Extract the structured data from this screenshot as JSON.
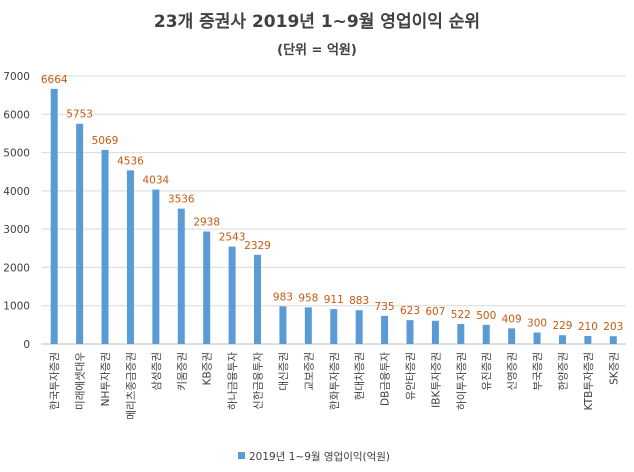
{
  "chart_data": {
    "type": "bar",
    "title": "23개 증권사 2019년 1~9월 영업이익 순위",
    "subtitle": "(단위 = 억원)",
    "categories": [
      "한국투자증권",
      "미래에셋대우",
      "NH투자증권",
      "메리츠종금증권",
      "삼성증권",
      "키움증권",
      "KB증권",
      "하나금융투자",
      "신한금융투자",
      "대신증권",
      "교보증권",
      "한화투자증권",
      "현대차증권",
      "DB금융투자",
      "유안타증권",
      "IBK투자증권",
      "하이투자증권",
      "유진증권",
      "신영증권",
      "부국증권",
      "한양증권",
      "KTB투자증권",
      "SK증권"
    ],
    "series": [
      {
        "name": "2019년 1~9월  영업이익(억원)",
        "values": [
          6664,
          5753,
          5069,
          4536,
          4034,
          3536,
          2938,
          2543,
          2329,
          983,
          958,
          911,
          883,
          735,
          623,
          607,
          522,
          500,
          409,
          300,
          229,
          210,
          203
        ]
      }
    ],
    "ylim": [
      0,
      7000
    ],
    "yticks": [
      0,
      1000,
      2000,
      3000,
      4000,
      5000,
      6000,
      7000
    ],
    "grid": true,
    "legend": "bottom",
    "bar_color": "#5b9bd5",
    "label_color": "#c55a11"
  }
}
